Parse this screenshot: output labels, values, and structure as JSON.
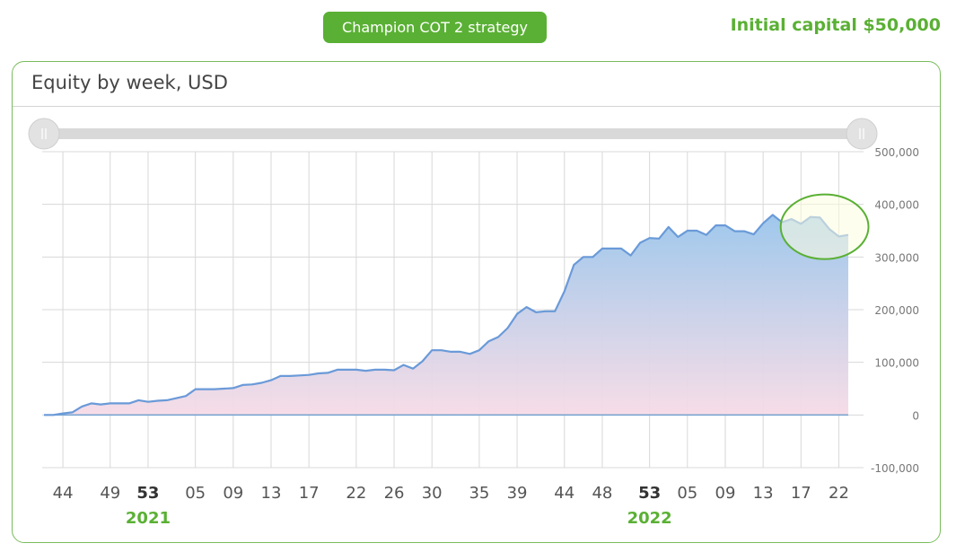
{
  "header": {
    "strategy_button": "Champion COT 2 strategy",
    "initial_capital": "Initial capital $50,000"
  },
  "chart_title": "Equity by week, USD",
  "chart_data": {
    "type": "area",
    "title": "Equity by week, USD",
    "ylim": [
      -100000,
      500000
    ],
    "y_ticks": [
      500000,
      400000,
      300000,
      200000,
      100000,
      0,
      -100000
    ],
    "y_tick_labels": [
      "500,000",
      "400,000",
      "300,000",
      "200,000",
      "100,000",
      "0",
      "-100,000"
    ],
    "x_tick_labels": [
      {
        "label": "44",
        "week_index": 2,
        "bold": false
      },
      {
        "label": "49",
        "week_index": 7,
        "bold": false
      },
      {
        "label": "53",
        "week_index": 11,
        "bold": true
      },
      {
        "label": "05",
        "week_index": 16,
        "bold": false
      },
      {
        "label": "09",
        "week_index": 20,
        "bold": false
      },
      {
        "label": "13",
        "week_index": 24,
        "bold": false
      },
      {
        "label": "17",
        "week_index": 28,
        "bold": false
      },
      {
        "label": "22",
        "week_index": 33,
        "bold": false
      },
      {
        "label": "26",
        "week_index": 37,
        "bold": false
      },
      {
        "label": "30",
        "week_index": 41,
        "bold": false
      },
      {
        "label": "35",
        "week_index": 46,
        "bold": false
      },
      {
        "label": "39",
        "week_index": 50,
        "bold": false
      },
      {
        "label": "44",
        "week_index": 55,
        "bold": false
      },
      {
        "label": "48",
        "week_index": 59,
        "bold": false
      },
      {
        "label": "53",
        "week_index": 64,
        "bold": true
      },
      {
        "label": "05",
        "week_index": 68,
        "bold": false
      },
      {
        "label": "09",
        "week_index": 72,
        "bold": false
      },
      {
        "label": "13",
        "week_index": 76,
        "bold": false
      },
      {
        "label": "17",
        "week_index": 80,
        "bold": false
      },
      {
        "label": "22",
        "week_index": 84,
        "bold": false
      }
    ],
    "year_labels": [
      {
        "label": "2021",
        "week_index": 11
      },
      {
        "label": "2022",
        "week_index": 64
      }
    ],
    "series": [
      {
        "values": [
          0,
          0,
          3000,
          5000,
          16000,
          22000,
          20000,
          22000,
          22000,
          22000,
          28000,
          25000,
          27000,
          28000,
          32000,
          36000,
          49000,
          49000,
          49000,
          50000,
          51000,
          57000,
          58000,
          61000,
          66000,
          74000,
          74000,
          75000,
          76000,
          79000,
          80000,
          86000,
          86000,
          86000,
          84000,
          86000,
          86000,
          85000,
          95000,
          88000,
          102000,
          123000,
          123000,
          120000,
          120000,
          116000,
          123000,
          140000,
          148000,
          165000,
          192000,
          205000,
          195000,
          197000,
          197000,
          235000,
          285000,
          300000,
          300000,
          316000,
          316000,
          316000,
          303000,
          327000,
          336000,
          335000,
          357000,
          338000,
          350000,
          350000,
          342000,
          360000,
          360000,
          349000,
          349000,
          343000,
          364000,
          380000,
          366000,
          372000,
          363000,
          376000,
          375000,
          353000,
          339000,
          342000
        ]
      },
      {
        "values": [
          0,
          0,
          0,
          0,
          0,
          0,
          0,
          0,
          0,
          0,
          0,
          0,
          0,
          0,
          0,
          0,
          0,
          0,
          0,
          0,
          0,
          0,
          0,
          0,
          0,
          0,
          0,
          0,
          0,
          0,
          0,
          0,
          0,
          0,
          0,
          0,
          0,
          0,
          0,
          0,
          0,
          0,
          0,
          0,
          0,
          0,
          0,
          0,
          0,
          0,
          0,
          0,
          0,
          0,
          0,
          0,
          0,
          0,
          0,
          0,
          0,
          0,
          0,
          0,
          0,
          0,
          0,
          0,
          0,
          0,
          0,
          0,
          0,
          0,
          0,
          0,
          0,
          0,
          0,
          0,
          0,
          0,
          0,
          0,
          0,
          0
        ]
      }
    ],
    "highlight_week_range": [
      79,
      86
    ],
    "navigator_range": [
      0,
      1
    ],
    "grid": true,
    "colors": {
      "line": "#6a9ad8",
      "area_top": "#9fc8ec",
      "area_bottom": "#f6dbe6",
      "baseline": "#79a6d2",
      "year_label": "#5ab034",
      "highlight_fill": "#fdfde0",
      "highlight_stroke": "#5ab034"
    }
  }
}
